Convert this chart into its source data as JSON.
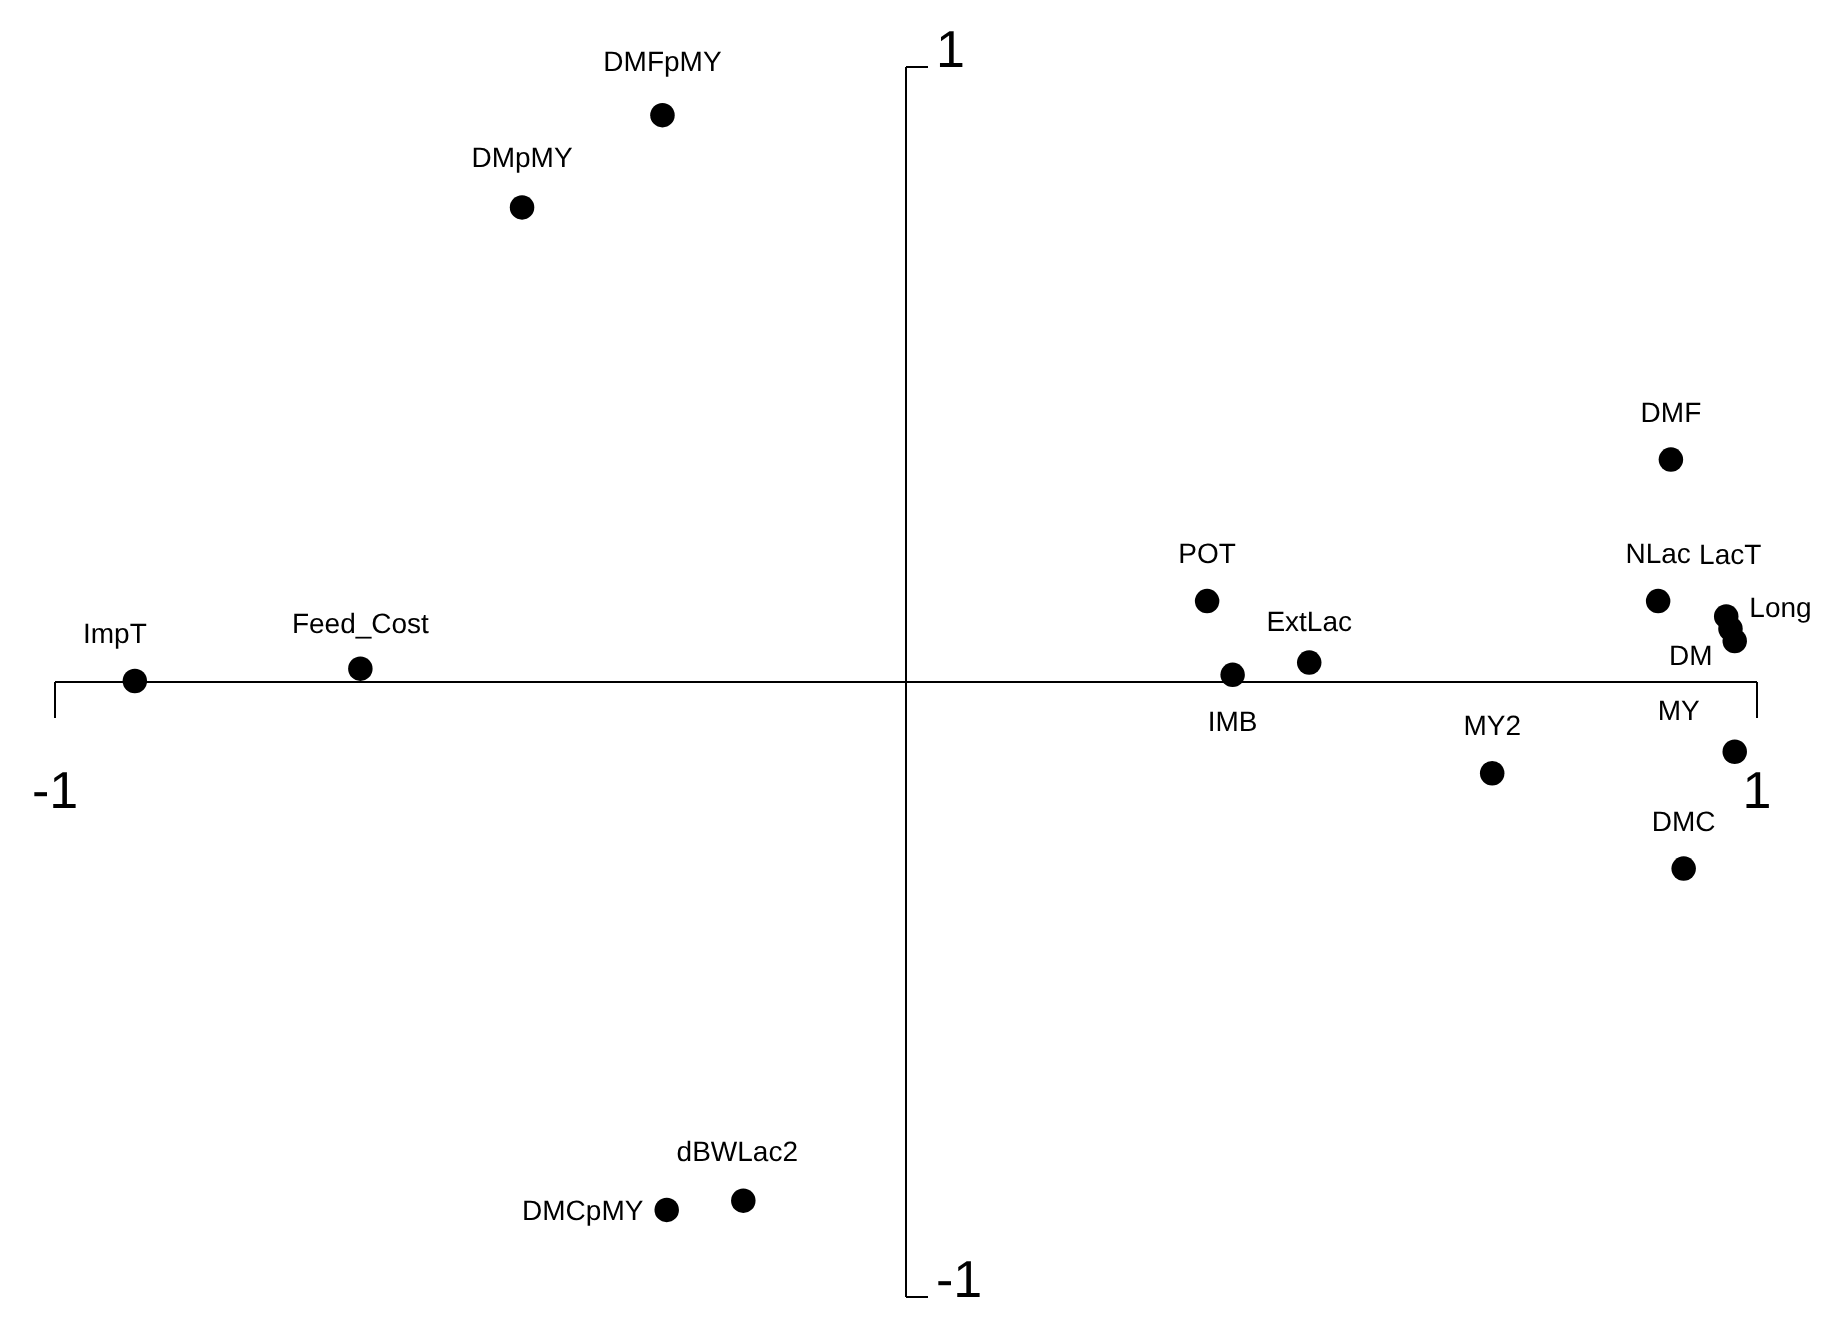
{
  "chart_data": {
    "type": "scatter",
    "x": [
      -0.285,
      -0.45,
      -0.905,
      -0.64,
      0.355,
      0.385,
      0.475,
      0.69,
      0.9,
      0.885,
      0.965,
      0.97,
      0.975,
      0.975,
      0.915,
      -0.19,
      -0.28
    ],
    "series": [
      {
        "color": "#000000",
        "values": [
          0.92,
          0.77,
          0,
          0.02,
          0.13,
          0.01,
          0.03,
          -0.15,
          0.36,
          0.13,
          0.105,
          0.085,
          0.065,
          -0.115,
          -0.305,
          -0.845,
          -0.86
        ]
      }
    ],
    "marker": "circle",
    "xlim": [
      -1,
      1
    ],
    "ylim": [
      -1,
      1
    ],
    "xticks": [
      -1,
      1
    ],
    "yticks": [
      -1,
      1
    ],
    "annotations": [
      {
        "text": "DMFpMY",
        "x": -0.285,
        "y": 0.92
      },
      {
        "text": "DMpMY",
        "x": -0.45,
        "y": 0.77
      },
      {
        "text": "ImpT",
        "x": -0.905,
        "y": 0
      },
      {
        "text": "Feed_Cost",
        "x": -0.64,
        "y": 0.02
      },
      {
        "text": "POT",
        "x": 0.355,
        "y": 0.13
      },
      {
        "text": "IMB",
        "x": 0.385,
        "y": 0.01
      },
      {
        "text": "ExtLac",
        "x": 0.475,
        "y": 0.03
      },
      {
        "text": "MY2",
        "x": 0.69,
        "y": -0.15
      },
      {
        "text": "DMF",
        "x": 0.9,
        "y": 0.36
      },
      {
        "text": "NLac",
        "x": 0.885,
        "y": 0.13
      },
      {
        "text": "LacT",
        "x": 0.965,
        "y": 0.105
      },
      {
        "text": "Long",
        "x": 0.97,
        "y": 0.085
      },
      {
        "text": "DM",
        "x": 0.975,
        "y": 0.065
      },
      {
        "text": "MY",
        "x": 0.975,
        "y": -0.115
      },
      {
        "text": "DMC",
        "x": 0.915,
        "y": -0.305
      },
      {
        "text": "dBWLac2",
        "x": -0.19,
        "y": -0.845
      },
      {
        "text": "DMCpMY",
        "x": -0.28,
        "y": -0.86
      }
    ]
  }
}
